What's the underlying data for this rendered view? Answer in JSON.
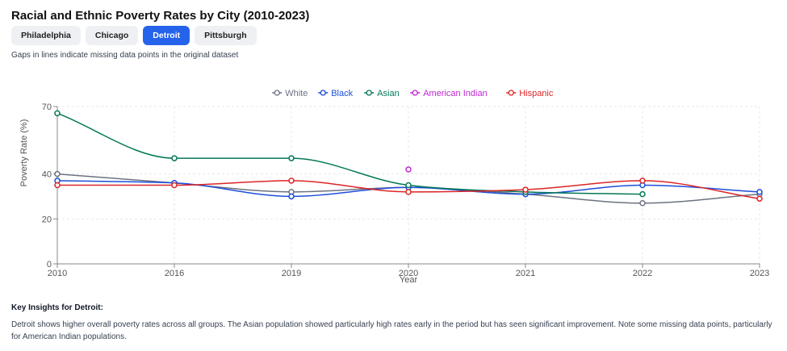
{
  "page": {
    "title": "Racial and Ethnic Poverty Rates by City (2010-2023)",
    "note": "Gaps in lines indicate missing data points in the original dataset"
  },
  "tabs": [
    {
      "label": "Philadelphia",
      "active": false
    },
    {
      "label": "Chicago",
      "active": false
    },
    {
      "label": "Detroit",
      "active": true
    },
    {
      "label": "Pittsburgh",
      "active": false
    }
  ],
  "chart_data": {
    "type": "line",
    "categories": [
      "2010",
      "2016",
      "2019",
      "2020",
      "2021",
      "2022",
      "2023"
    ],
    "xlabel": "Year",
    "ylabel": "Poverty Rate (%)",
    "ylim": [
      0,
      70
    ],
    "yticks": [
      0,
      20,
      40,
      70
    ],
    "legend_position": "top-center",
    "series": [
      {
        "name": "White",
        "color": "#6b7280",
        "values": [
          40,
          36,
          32,
          34,
          31,
          27,
          31
        ]
      },
      {
        "name": "Black",
        "color": "#1d4ed8",
        "values": [
          37,
          36,
          30,
          34,
          31,
          35,
          32
        ]
      },
      {
        "name": "Asian",
        "color": "#047857",
        "values": [
          67,
          47,
          47,
          35,
          32,
          31,
          null
        ]
      },
      {
        "name": "American Indian",
        "color": "#c026d3",
        "values": [
          null,
          null,
          null,
          42,
          null,
          null,
          null
        ]
      },
      {
        "name": "Hispanic",
        "color": "#dc2626",
        "values": [
          35,
          35,
          37,
          32,
          33,
          37,
          29
        ]
      }
    ]
  },
  "insights": {
    "title": "Key Insights for Detroit:",
    "text": "Detroit shows higher overall poverty rates across all groups. The Asian population showed particularly high rates early in the period but has seen significant improvement. Note some missing data points, particularly for American Indian populations."
  }
}
